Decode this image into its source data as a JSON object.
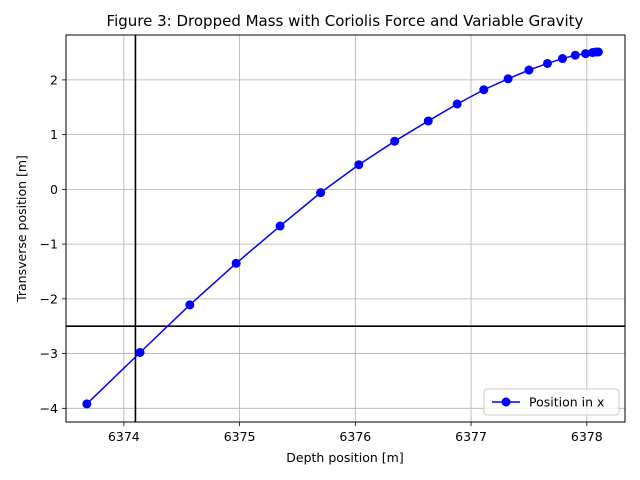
{
  "chart_data": {
    "type": "line",
    "title": "Figure 3: Dropped Mass with Coriolis Force and Variable Gravity",
    "xlabel": "Depth position [m]",
    "ylabel": "Transverse position [m]",
    "xlim": [
      6373.5,
      6378.33
    ],
    "ylim": [
      -4.25,
      2.82
    ],
    "xticks": [
      6374,
      6375,
      6376,
      6377,
      6378
    ],
    "xtick_labels": [
      "6374",
      "6375",
      "6376",
      "6377",
      "6378"
    ],
    "yticks": [
      -4,
      -3,
      -2,
      -1,
      0,
      1,
      2
    ],
    "ytick_labels": [
      "−4",
      "−3",
      "−2",
      "−1",
      "0",
      "1",
      "2"
    ],
    "grid": true,
    "legend_position": "lower-right",
    "series": [
      {
        "name": "Position in x",
        "color": "#0000ff",
        "marker": "circle",
        "x": [
          6373.68,
          6374.14,
          6374.57,
          6374.97,
          6375.35,
          6375.7,
          6376.03,
          6376.34,
          6376.63,
          6376.88,
          6377.11,
          6377.32,
          6377.5,
          6377.66,
          6377.79,
          6377.9,
          6377.99,
          6378.05,
          6378.08,
          6378.1
        ],
        "y": [
          -3.92,
          -2.98,
          -2.11,
          -1.35,
          -0.67,
          -0.06,
          0.45,
          0.88,
          1.25,
          1.56,
          1.82,
          2.02,
          2.18,
          2.3,
          2.39,
          2.45,
          2.48,
          2.5,
          2.51,
          2.51
        ]
      }
    ],
    "reference_lines": [
      {
        "orientation": "vertical",
        "value": 6374.1,
        "color": "#000000"
      },
      {
        "orientation": "horizontal",
        "value": -2.5,
        "color": "#000000"
      }
    ]
  }
}
